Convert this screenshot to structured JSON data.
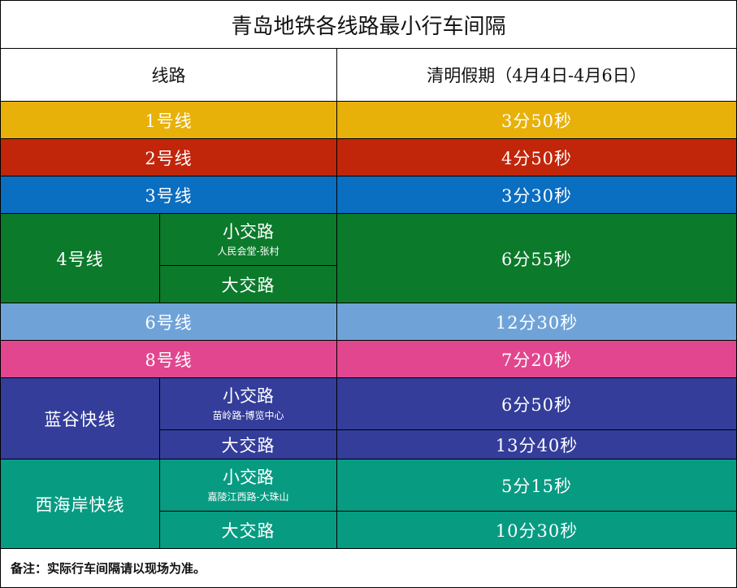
{
  "title": "青岛地铁各线路最小行车间隔",
  "headers": {
    "line": "线路",
    "interval": "清明假期（4月4日-4月6日）"
  },
  "rows": [
    {
      "line": "1号线",
      "interval": "3分50秒",
      "color": "#E8B10A"
    },
    {
      "line": "2号线",
      "interval": "4分50秒",
      "color": "#C1260B"
    },
    {
      "line": "3号线",
      "interval": "3分30秒",
      "color": "#0A6EC1"
    },
    {
      "line": "4号线",
      "color": "#0B7A2B",
      "short_route": {
        "label": "小交路",
        "range": "人民会堂-张村"
      },
      "long_route": {
        "label": "大交路"
      },
      "interval": "6分55秒"
    },
    {
      "line": "6号线",
      "interval": "12分30秒",
      "color": "#6FA3D8"
    },
    {
      "line": "8号线",
      "interval": "7分20秒",
      "color": "#E2468F"
    },
    {
      "line": "蓝谷快线",
      "color": "#343D9A",
      "short_route": {
        "label": "小交路",
        "range": "苗岭路-博览中心",
        "interval": "6分50秒"
      },
      "long_route": {
        "label": "大交路",
        "interval": "13分40秒"
      }
    },
    {
      "line": "西海岸快线",
      "color": "#079B82",
      "short_route": {
        "label": "小交路",
        "range": "嘉陵江西路-大珠山",
        "interval": "5分15秒"
      },
      "long_route": {
        "label": "大交路",
        "interval": "10分30秒"
      }
    }
  ],
  "note": "备注：实际行车间隔请以现场为准。"
}
